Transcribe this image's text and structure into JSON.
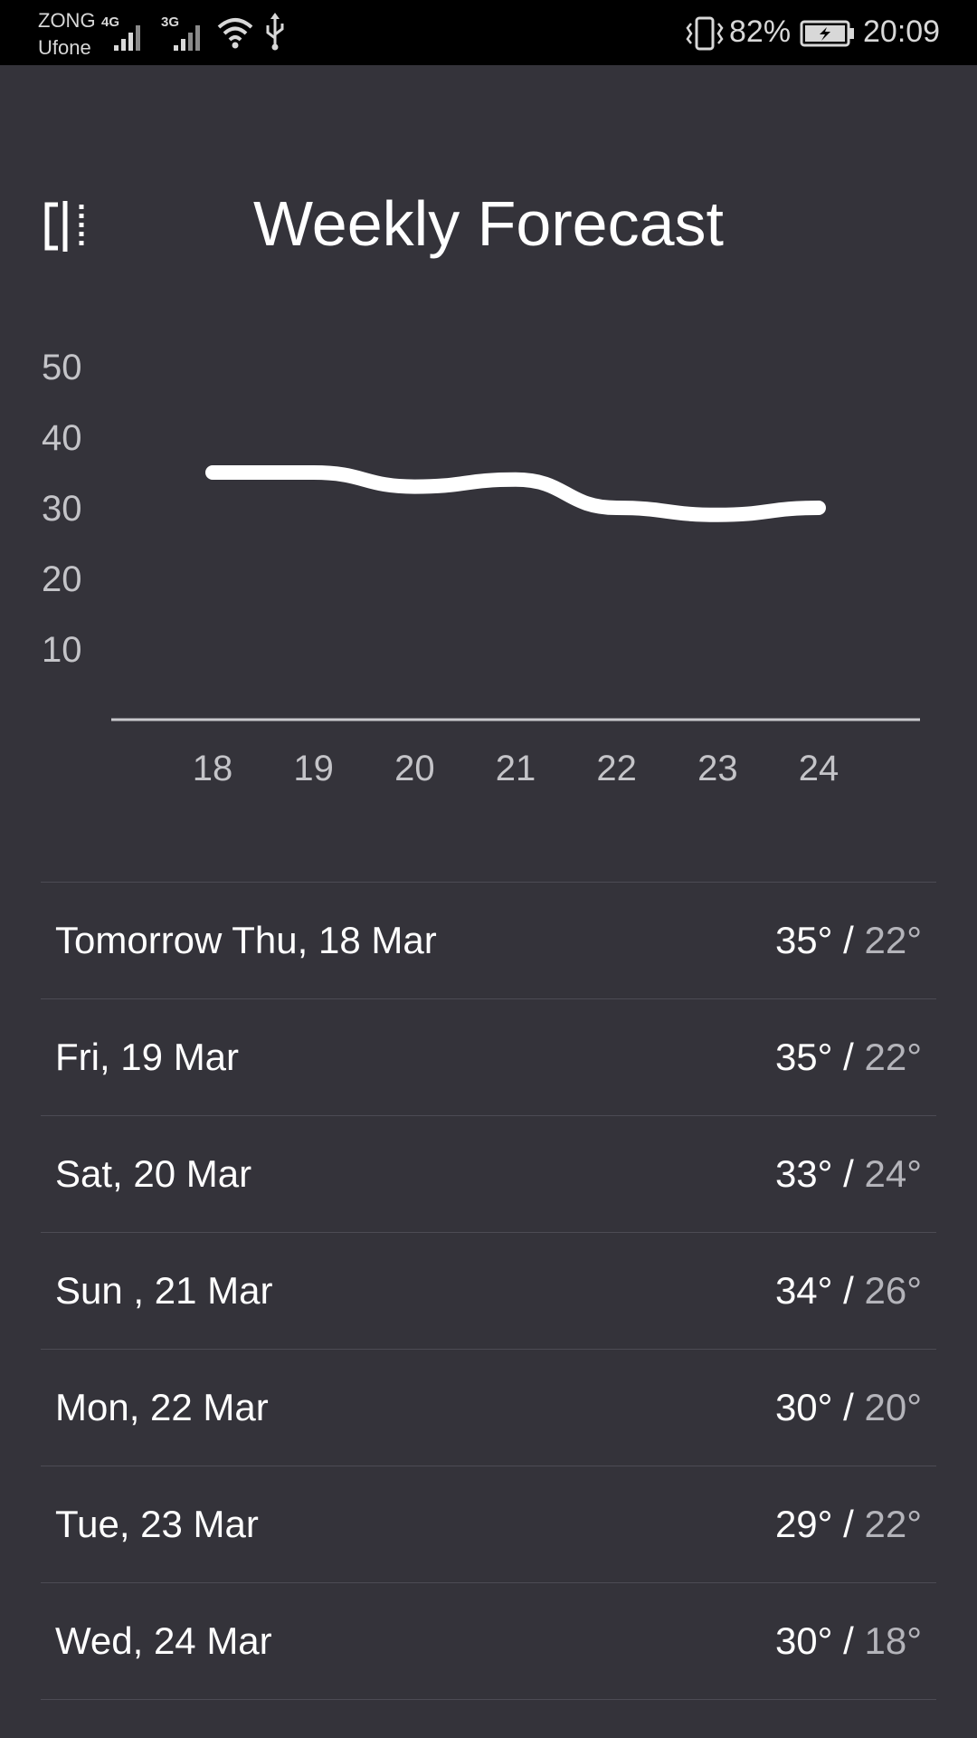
{
  "status_bar": {
    "carrier_1": "ZONG",
    "carrier_2": "Ufone",
    "sim1_network": "4G",
    "sim2_network": "3G",
    "battery_percent": "82%",
    "time": "20:09",
    "icons": [
      "signal-icon",
      "wifi-icon",
      "usb-icon",
      "vibrate-icon",
      "battery-charging-icon"
    ]
  },
  "header": {
    "title": "Weekly Forecast",
    "left_icon": "compare-icon"
  },
  "chart_data": {
    "type": "line",
    "x": [
      "18",
      "19",
      "20",
      "21",
      "22",
      "23",
      "24"
    ],
    "series": [
      {
        "values": [
          35,
          35,
          33,
          34,
          30,
          29,
          30
        ]
      }
    ],
    "y_ticks": [
      "50",
      "40",
      "30",
      "20",
      "10"
    ],
    "ylim": [
      0,
      50
    ],
    "grid": false,
    "line_color": "#ffffff"
  },
  "forecast": [
    {
      "date": "Tomorrow Thu, 18 Mar",
      "high": "35°",
      "low": "22°"
    },
    {
      "date": "Fri, 19 Mar",
      "high": "35°",
      "low": "22°"
    },
    {
      "date": "Sat, 20 Mar",
      "high": "33°",
      "low": "24°"
    },
    {
      "date": "Sun , 21 Mar",
      "high": "34°",
      "low": "26°"
    },
    {
      "date": "Mon, 22 Mar",
      "high": "30°",
      "low": "20°"
    },
    {
      "date": "Tue, 23 Mar",
      "high": "29°",
      "low": "22°"
    },
    {
      "date": "Wed, 24 Mar",
      "high": "30°",
      "low": "18°"
    }
  ],
  "temp_separator": "/",
  "colors": {
    "background": "#34333a",
    "status_bar": "#000000",
    "divider": "#4c4b54",
    "low_temp": "#b4b4ba"
  }
}
